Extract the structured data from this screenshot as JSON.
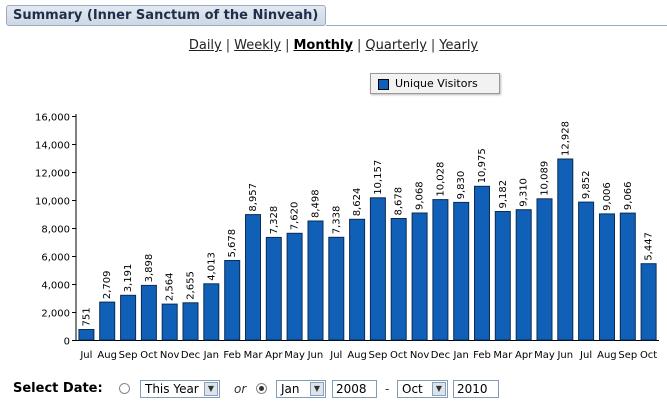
{
  "header": {
    "title": "Summary (Inner Sanctum of the Ninveah)"
  },
  "periods": [
    {
      "label": "Daily",
      "active": false
    },
    {
      "label": "Weekly",
      "active": false
    },
    {
      "label": "Monthly",
      "active": true
    },
    {
      "label": "Quarterly",
      "active": false
    },
    {
      "label": "Yearly",
      "active": false
    }
  ],
  "chart_data": {
    "type": "bar",
    "title": "",
    "legend": [
      "Unique Visitors"
    ],
    "categories": [
      "Jul",
      "Aug",
      "Sep",
      "Oct",
      "Nov",
      "Dec",
      "Jan",
      "Feb",
      "Mar",
      "Apr",
      "May",
      "Jun",
      "Jul",
      "Aug",
      "Sep",
      "Oct",
      "Nov",
      "Dec",
      "Jan",
      "Feb",
      "Mar",
      "Apr",
      "May",
      "Jun",
      "Jul",
      "Aug",
      "Sep",
      "Oct"
    ],
    "values": [
      751,
      2709,
      3191,
      3898,
      2564,
      2655,
      4013,
      5678,
      8957,
      7328,
      7620,
      8498,
      7338,
      8624,
      10157,
      8678,
      9068,
      10028,
      9830,
      10975,
      9182,
      9310,
      10089,
      12928,
      9852,
      9006,
      9066,
      5447
    ],
    "value_labels": [
      "751",
      "2,709",
      "3,191",
      "3,898",
      "2,564",
      "2,655",
      "4,013",
      "5,678",
      "8,957",
      "7,328",
      "7,620",
      "8,498",
      "7,338",
      "8,624",
      "10,157",
      "8,678",
      "9,068",
      "10,028",
      "9,830",
      "10,975",
      "9,182",
      "9,310",
      "10,089",
      "12,928",
      "9,852",
      "9,006",
      "9,066",
      "5,447"
    ],
    "ylim": [
      0,
      16000
    ],
    "yticks": [
      0,
      2000,
      4000,
      6000,
      8000,
      10000,
      12000,
      14000,
      16000
    ],
    "ytick_labels": [
      "0",
      "2,000",
      "4,000",
      "6,000",
      "8,000",
      "10,000",
      "12,000",
      "14,000",
      "16,000"
    ],
    "xlabel": "",
    "ylabel": "",
    "grid": false,
    "bar_color": "#1060b8"
  },
  "select_date": {
    "label": "Select Date:",
    "preset_value": "This Year",
    "or_text": "or",
    "from_month": "Jan",
    "from_year": "2008",
    "dash": "-",
    "to_month": "Oct",
    "to_year": "2010"
  }
}
